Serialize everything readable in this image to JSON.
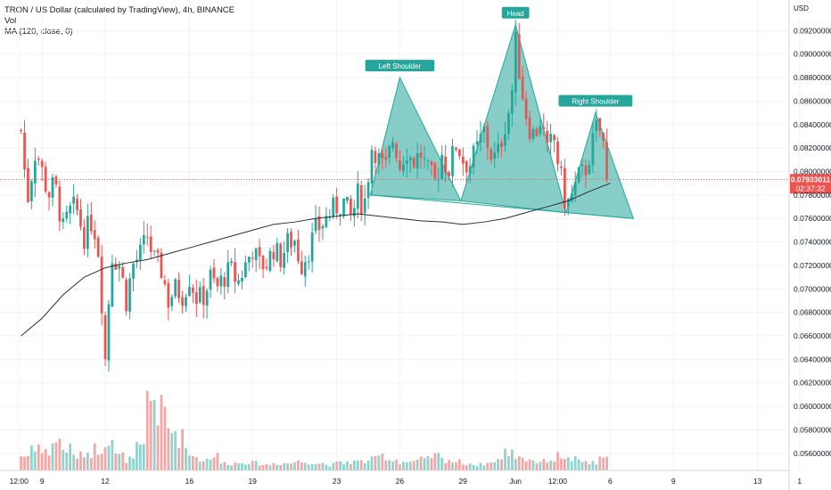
{
  "header": {
    "symbol_line": "TRON / US Dollar (calculated by TradingView), 4h, BINANCE",
    "vol_label": "Vol",
    "ma_label": "MA (120, close, 0)"
  },
  "price_axis": {
    "currency": "USD",
    "current_price": "0.07933011",
    "countdown": "02:37:32"
  },
  "colors": {
    "up": "#26a69a",
    "down": "#ef5350",
    "vol_up": "#8fd3cc",
    "vol_down": "#f5a5a3",
    "pattern_fill": "#26a69a",
    "ma_line": "#2a2e39",
    "price_tag": "#ef5350"
  },
  "chart_data": {
    "type": "candlestick",
    "title": "TRON / US Dollar (calculated by TradingView), 4h, BINANCE",
    "y_unit": "USD",
    "ylim": [
      0.055,
      0.094
    ],
    "y_ticks": [
      "0.09200000",
      "0.09000000",
      "0.08800000",
      "0.08600000",
      "0.08400000",
      "0.08200000",
      "0.08000000",
      "0.07800000",
      "0.07600000",
      "0.07400000",
      "0.07200000",
      "0.07000000",
      "0.06800000",
      "0.06600000",
      "0.06400000",
      "0.06200000",
      "0.06000000",
      "0.05800000",
      "0.05600000"
    ],
    "x_ticks": [
      "12:00",
      "9",
      "12",
      "16",
      "19",
      "23",
      "26",
      "29",
      "Jun",
      "12:00",
      "6",
      "9",
      "13",
      "1"
    ],
    "annotations": [
      {
        "label": "Left Shoulder"
      },
      {
        "label": "Head"
      },
      {
        "label": "Right Shoulder"
      }
    ],
    "pattern": "Head and Shoulders",
    "pattern_points": {
      "left_shoulder": [
        [
          24.6,
          0.078
        ],
        [
          26.0,
          0.088
        ],
        [
          28.9,
          0.0775
        ]
      ],
      "head": [
        [
          28.9,
          0.0775
        ],
        [
          31.5,
          0.0925
        ],
        [
          33.9,
          0.0765
        ]
      ],
      "right_shoulder": [
        [
          33.9,
          0.0765
        ],
        [
          35.3,
          0.085
        ],
        [
          37.1,
          0.076
        ]
      ]
    },
    "key_levels": {
      "last_price": 0.07933011,
      "neckline_start": 0.078,
      "neckline_end": 0.076
    },
    "series": [
      {
        "kind": "candles",
        "days_per_bar": 0.1667,
        "first_day": 8.0,
        "close_path": [
          [
            8.0,
            0.0835
          ],
          [
            8.3,
            0.0775
          ],
          [
            8.7,
            0.082
          ],
          [
            9.0,
            0.08
          ],
          [
            9.3,
            0.078
          ],
          [
            9.6,
            0.079
          ],
          [
            10.0,
            0.075
          ],
          [
            10.3,
            0.0765
          ],
          [
            10.6,
            0.077
          ],
          [
            11.0,
            0.0745
          ],
          [
            11.4,
            0.076
          ],
          [
            11.7,
            0.073
          ],
          [
            12.0,
            0.064
          ],
          [
            12.3,
            0.073
          ],
          [
            12.7,
            0.072
          ],
          [
            13.0,
            0.069
          ],
          [
            13.3,
            0.072
          ],
          [
            13.7,
            0.073
          ],
          [
            14.0,
            0.0745
          ],
          [
            14.3,
            0.0725
          ],
          [
            14.7,
            0.0715
          ],
          [
            15.0,
            0.069
          ],
          [
            15.3,
            0.07
          ],
          [
            15.7,
            0.0695
          ],
          [
            16.0,
            0.071
          ],
          [
            16.4,
            0.069
          ],
          [
            16.7,
            0.0695
          ],
          [
            17.0,
            0.071
          ],
          [
            17.3,
            0.07
          ],
          [
            17.7,
            0.0712
          ],
          [
            18.0,
            0.0715
          ],
          [
            18.3,
            0.0705
          ],
          [
            18.7,
            0.0722
          ],
          [
            19.0,
            0.0735
          ],
          [
            19.3,
            0.072
          ],
          [
            19.7,
            0.0722
          ],
          [
            20.0,
            0.0735
          ],
          [
            20.3,
            0.0725
          ],
          [
            20.7,
            0.074
          ],
          [
            21.0,
            0.0742
          ],
          [
            21.3,
            0.072
          ],
          [
            21.7,
            0.0735
          ],
          [
            22.0,
            0.075
          ],
          [
            22.3,
            0.0755
          ],
          [
            22.7,
            0.0765
          ],
          [
            23.0,
            0.077
          ],
          [
            23.3,
            0.0775
          ],
          [
            23.7,
            0.076
          ],
          [
            24.0,
            0.078
          ],
          [
            24.3,
            0.077
          ],
          [
            24.7,
            0.0825
          ],
          [
            25.0,
            0.081
          ],
          [
            25.3,
            0.08
          ],
          [
            25.7,
            0.083
          ],
          [
            26.0,
            0.0805
          ],
          [
            26.3,
            0.082
          ],
          [
            26.6,
            0.0808
          ],
          [
            27.0,
            0.0815
          ],
          [
            27.3,
            0.08
          ],
          [
            27.7,
            0.079
          ],
          [
            28.0,
            0.0815
          ],
          [
            28.3,
            0.08
          ],
          [
            28.7,
            0.0825
          ],
          [
            29.0,
            0.081
          ],
          [
            29.3,
            0.0805
          ],
          [
            29.7,
            0.082
          ],
          [
            30.0,
            0.0835
          ],
          [
            30.3,
            0.0815
          ],
          [
            30.6,
            0.081
          ],
          [
            31.0,
            0.084
          ],
          [
            31.3,
            0.086
          ],
          [
            31.5,
            0.091
          ],
          [
            31.8,
            0.087
          ],
          [
            32.1,
            0.084
          ],
          [
            32.4,
            0.083
          ],
          [
            32.7,
            0.0845
          ],
          [
            33.0,
            0.0815
          ],
          [
            33.3,
            0.083
          ],
          [
            33.6,
            0.08
          ],
          [
            33.9,
            0.077
          ],
          [
            34.2,
            0.078
          ],
          [
            34.5,
            0.0795
          ],
          [
            34.8,
            0.08
          ],
          [
            35.1,
            0.082
          ],
          [
            35.4,
            0.084
          ],
          [
            35.6,
            0.083
          ],
          [
            35.8,
            0.081
          ],
          [
            36.0,
            0.07933
          ]
        ]
      },
      {
        "kind": "volume",
        "relative_heights": [
          0.2,
          0.35,
          0.25,
          0.4,
          0.3,
          0.2,
          0.25,
          0.3,
          0.45,
          0.2,
          0.15,
          0.3,
          1.0,
          0.8,
          0.55,
          0.45,
          0.2,
          0.15,
          0.2,
          0.1,
          0.1,
          0.12,
          0.1,
          0.08,
          0.1,
          0.1,
          0.12,
          0.12,
          0.1,
          0.08,
          0.1,
          0.12,
          0.12,
          0.15,
          0.2,
          0.15,
          0.12,
          0.12,
          0.15,
          0.2,
          0.15,
          0.12,
          0.1,
          0.08,
          0.1,
          0.15,
          0.25,
          0.2,
          0.15,
          0.12,
          0.15,
          0.2,
          0.15,
          0.12,
          0.1,
          0.15,
          0.2,
          0.12,
          0.1,
          0.1,
          0.12,
          0.2,
          0.15,
          0.1,
          0.12,
          0.1,
          0.1,
          0.15,
          0.12,
          0.1
        ]
      },
      {
        "kind": "line",
        "name": "MA (120, close, 0)",
        "points": [
          [
            8.0,
            0.066
          ],
          [
            9.0,
            0.0675
          ],
          [
            10.0,
            0.0695
          ],
          [
            11.0,
            0.071
          ],
          [
            12.0,
            0.0718
          ],
          [
            13.0,
            0.0722
          ],
          [
            14.0,
            0.0725
          ],
          [
            15.0,
            0.073
          ],
          [
            16.0,
            0.0735
          ],
          [
            17.0,
            0.074
          ],
          [
            18.0,
            0.0745
          ],
          [
            19.0,
            0.075
          ],
          [
            20.0,
            0.0755
          ],
          [
            21.0,
            0.0757
          ],
          [
            22.0,
            0.076
          ],
          [
            23.0,
            0.0762
          ],
          [
            24.0,
            0.0764
          ],
          [
            25.0,
            0.0762
          ],
          [
            26.0,
            0.076
          ],
          [
            27.0,
            0.0758
          ],
          [
            28.0,
            0.0757
          ],
          [
            29.0,
            0.0755
          ],
          [
            30.0,
            0.0757
          ],
          [
            31.0,
            0.076
          ],
          [
            32.0,
            0.0765
          ],
          [
            33.0,
            0.077
          ],
          [
            34.0,
            0.0775
          ],
          [
            35.0,
            0.0783
          ],
          [
            36.0,
            0.079
          ]
        ]
      }
    ]
  }
}
